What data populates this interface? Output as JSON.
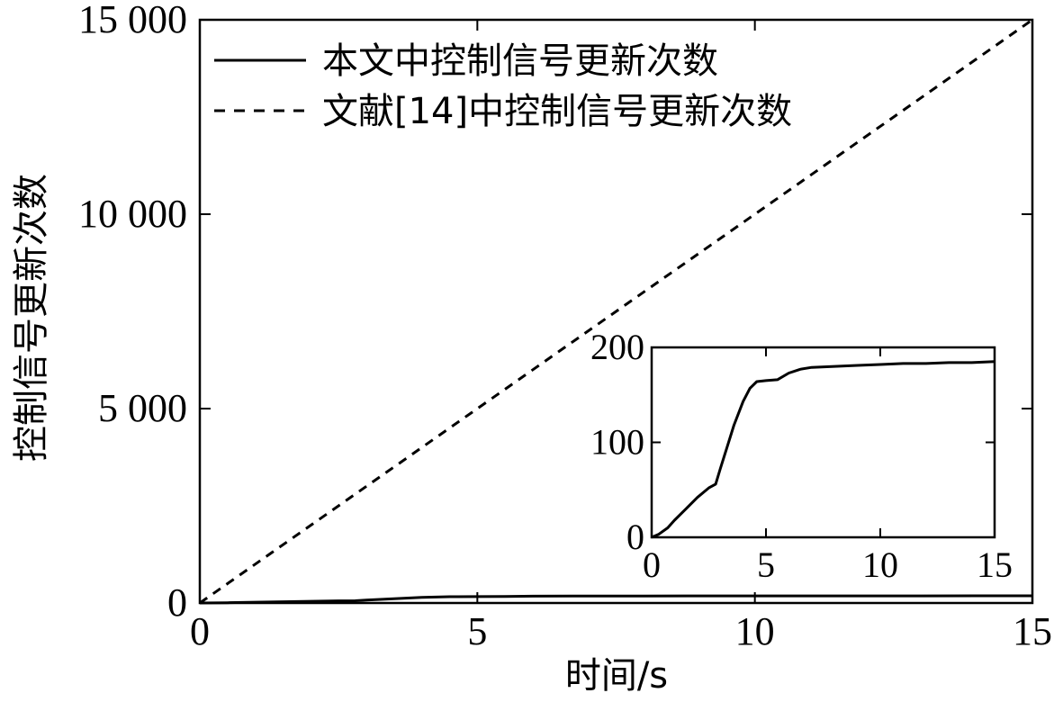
{
  "chart_data": [
    {
      "type": "line",
      "xlabel": "时间/s",
      "ylabel": "控制信号更新次数",
      "xlim": [
        0,
        15
      ],
      "ylim": [
        0,
        15000
      ],
      "xticks": [
        0,
        5,
        10,
        15
      ],
      "xtick_labels": [
        "0",
        "5",
        "10",
        "15"
      ],
      "yticks": [
        0,
        5000,
        10000,
        15000
      ],
      "ytick_labels": [
        "0",
        "5 000",
        "10 000",
        "15 000"
      ],
      "grid": false,
      "legend_position": "top-left",
      "series": [
        {
          "name": "本文中控制信号更新次数",
          "style": "solid",
          "x": [
            0,
            0.5,
            1,
            1.5,
            2,
            2.5,
            2.8,
            3,
            3.5,
            4,
            4.5,
            5,
            5.5,
            6,
            7,
            8,
            9,
            10,
            11,
            12,
            13,
            14,
            15
          ],
          "y": [
            0,
            8,
            20,
            33,
            45,
            55,
            58,
            75,
            110,
            145,
            163,
            165,
            170,
            177,
            180,
            181,
            182,
            183,
            183,
            184,
            184,
            185,
            185
          ]
        },
        {
          "name": "文献[14]中控制信号更新次数",
          "style": "dashed",
          "x": [
            0,
            15
          ],
          "y": [
            0,
            15000
          ]
        }
      ]
    },
    {
      "type": "line",
      "role": "inset",
      "xlim": [
        0,
        15
      ],
      "ylim": [
        0,
        200
      ],
      "xticks": [
        0,
        5,
        10,
        15
      ],
      "xtick_labels": [
        "0",
        "5",
        "10",
        "15"
      ],
      "yticks": [
        0,
        100,
        200
      ],
      "ytick_labels": [
        "0",
        "100",
        "200"
      ],
      "series": [
        {
          "style": "solid",
          "x": [
            0,
            0.3,
            0.7,
            1,
            1.5,
            2,
            2.5,
            2.8,
            3,
            3.3,
            3.6,
            4,
            4.3,
            4.6,
            5,
            5.5,
            6,
            6.5,
            7,
            8,
            9,
            10,
            11,
            12,
            13,
            14,
            15
          ],
          "y": [
            0,
            3,
            10,
            18,
            30,
            42,
            52,
            56,
            72,
            95,
            118,
            143,
            157,
            164,
            165,
            166,
            173,
            177,
            179,
            180,
            181,
            182,
            183,
            183,
            184,
            184,
            185
          ]
        }
      ]
    }
  ]
}
